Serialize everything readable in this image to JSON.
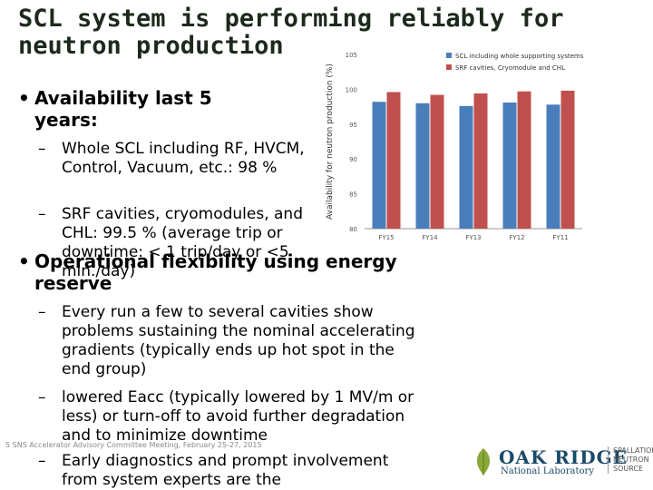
{
  "title": "SCL system is performing reliably for neutron production",
  "bullets": {
    "b1": "Availability last 5 years:",
    "b1_sub1": "Whole SCL including RF, HVCM, Control, Vacuum, etc.: 98 %",
    "b1_sub2": "SRF cavities, cryomodules, and CHL: 99.5 % (average trip or downtime: < 1 trip/day or <5 min./day)",
    "b2": "Operational flexibility using energy reserve",
    "b2_sub1": "Every run a few to several cavities show problems sustaining the nominal accelerating gradients (typically ends up hot spot in the end group)",
    "b2_sub2": "lowered Eacc (typically lowered by 1 MV/m or less) or turn-off to avoid further degradation and to minimize downtime",
    "b2_sub3": "Early diagnostics and prompt involvement from system experts are the"
  },
  "footer": {
    "page": "5",
    "text": "SNS Accelerator Advisory Committee Meeting, February 25-27, 2015"
  },
  "logo": {
    "oak_ridge": "OAK RIDGE",
    "national_lab": "National Laboratory",
    "sns": "SPALLATION NEUTRON SOURCE"
  },
  "colors": {
    "series1": "#4a7ebb",
    "series2": "#c0504d",
    "title": "#1c2a1c"
  },
  "chart_data": {
    "type": "bar",
    "categories": [
      "FY15",
      "FY14",
      "FY13",
      "FY12",
      "FY11"
    ],
    "series": [
      {
        "name": "SCL including whole supporting systems",
        "values": [
          98.2,
          98.0,
          97.6,
          98.1,
          97.8
        ]
      },
      {
        "name": "SRF cavities, Cryomodule and CHL",
        "values": [
          99.6,
          99.2,
          99.4,
          99.7,
          99.8
        ]
      }
    ],
    "ylabel": "Availability for neutron production (%)",
    "xlabel": "",
    "ylim": [
      80,
      105
    ],
    "yticks": [
      80,
      85,
      90,
      95,
      100,
      105
    ],
    "legend": "top-right",
    "grid": false
  }
}
